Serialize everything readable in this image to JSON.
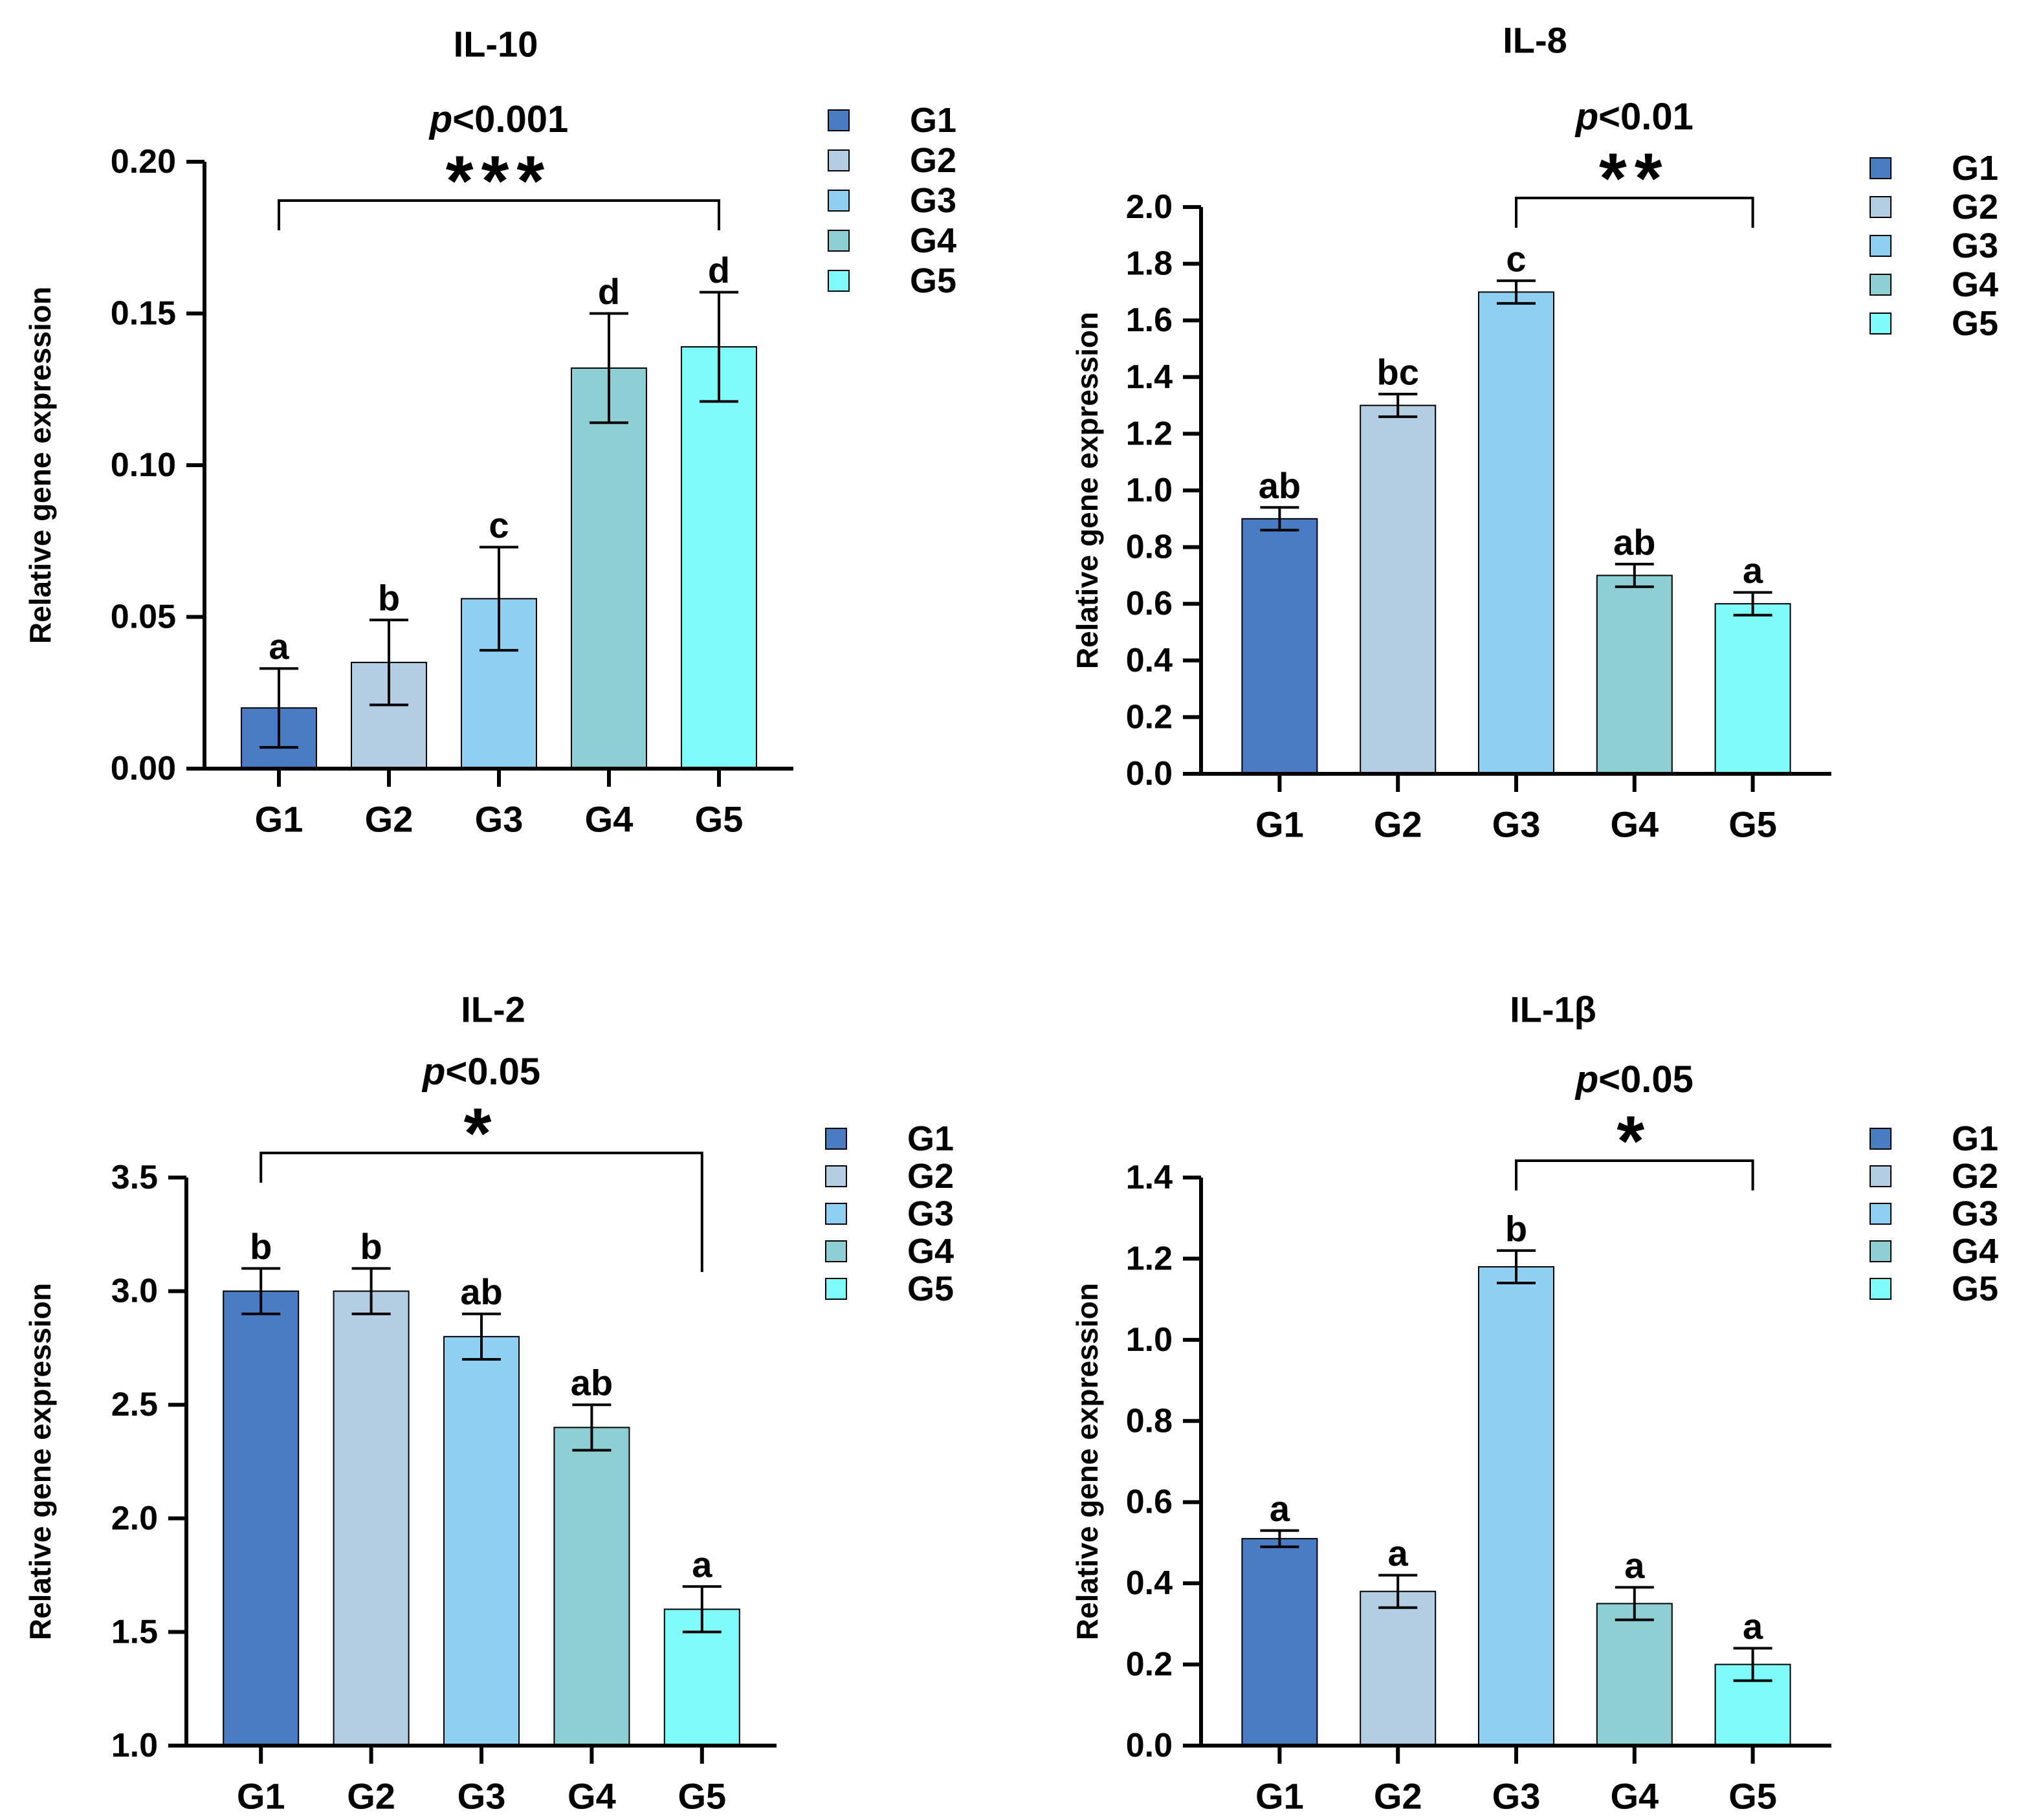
{
  "chart_data": [
    {
      "type": "bar",
      "title": "IL-10",
      "ylabel": "Relative gene expression",
      "xlabel": "",
      "categories": [
        "G1",
        "G2",
        "G3",
        "G4",
        "G5"
      ],
      "values": [
        0.02,
        0.035,
        0.056,
        0.132,
        0.139
      ],
      "errors": [
        0.013,
        0.014,
        0.017,
        0.018,
        0.018
      ],
      "letters": [
        "a",
        "b",
        "c",
        "d",
        "d"
      ],
      "ylim": [
        0,
        0.2
      ],
      "yticks": [
        "0.00",
        "0.05",
        "0.10",
        "0.15",
        "0.20"
      ],
      "significance": {
        "p": "p",
        "rest": "<0.001",
        "stars": "***",
        "from": "G1",
        "to": "G5"
      },
      "legend": [
        "G1",
        "G2",
        "G3",
        "G4",
        "G5"
      ]
    },
    {
      "type": "bar",
      "title": "IL-8",
      "ylabel": "Relative gene expression",
      "xlabel": "",
      "categories": [
        "G1",
        "G2",
        "G3",
        "G4",
        "G5"
      ],
      "values": [
        0.9,
        1.3,
        1.7,
        0.7,
        0.6
      ],
      "errors": [
        0.04,
        0.04,
        0.04,
        0.04,
        0.04
      ],
      "letters": [
        "ab",
        "bc",
        "c",
        "ab",
        "a"
      ],
      "ylim": [
        0,
        2.0
      ],
      "yticks": [
        "0.0",
        "0.2",
        "0.4",
        "0.6",
        "0.8",
        "1.0",
        "1.2",
        "1.4",
        "1.6",
        "1.8",
        "2.0"
      ],
      "significance": {
        "p": "p",
        "rest": "<0.01",
        "stars": "**",
        "from": "G3",
        "to": "G5"
      },
      "legend": [
        "G1",
        "G2",
        "G3",
        "G4",
        "G5"
      ]
    },
    {
      "type": "bar",
      "title": "IL-2",
      "ylabel": "Relative gene expression",
      "xlabel": "",
      "categories": [
        "G1",
        "G2",
        "G3",
        "G4",
        "G5"
      ],
      "values": [
        3.0,
        3.0,
        2.8,
        2.4,
        1.6
      ],
      "errors": [
        0.1,
        0.1,
        0.1,
        0.1,
        0.1
      ],
      "letters": [
        "b",
        "b",
        "ab",
        "ab",
        "a"
      ],
      "ylim": [
        1.0,
        3.5
      ],
      "yticks": [
        "1.0",
        "1.5",
        "2.0",
        "2.5",
        "3.0",
        "3.5"
      ],
      "significance": {
        "p": "p",
        "rest": "<0.05",
        "stars": "*",
        "from": "G1",
        "to": "G5"
      },
      "legend": [
        "G1",
        "G2",
        "G3",
        "G4",
        "G5"
      ]
    },
    {
      "type": "bar",
      "title": "IL-1β",
      "ylabel": "Relative gene expression",
      "xlabel": "",
      "categories": [
        "G1",
        "G2",
        "G3",
        "G4",
        "G5"
      ],
      "values": [
        0.51,
        0.38,
        1.18,
        0.35,
        0.2
      ],
      "errors": [
        0.02,
        0.04,
        0.04,
        0.04,
        0.04
      ],
      "letters": [
        "a",
        "a",
        "b",
        "a",
        "a"
      ],
      "ylim": [
        0,
        1.4
      ],
      "yticks": [
        "0.0",
        "0.2",
        "0.4",
        "0.6",
        "0.8",
        "1.0",
        "1.2",
        "1.4"
      ],
      "significance": {
        "p": "p",
        "rest": "<0.05",
        "stars": "*",
        "from": "G3",
        "to": "G5"
      },
      "legend": [
        "G1",
        "G2",
        "G3",
        "G4",
        "G5"
      ]
    }
  ],
  "colors": {
    "series": [
      "#4a7cc4",
      "#b3cde3",
      "#8fd0f2",
      "#8dcfd2",
      "#7ffbfb"
    ],
    "axis": "#000000"
  }
}
